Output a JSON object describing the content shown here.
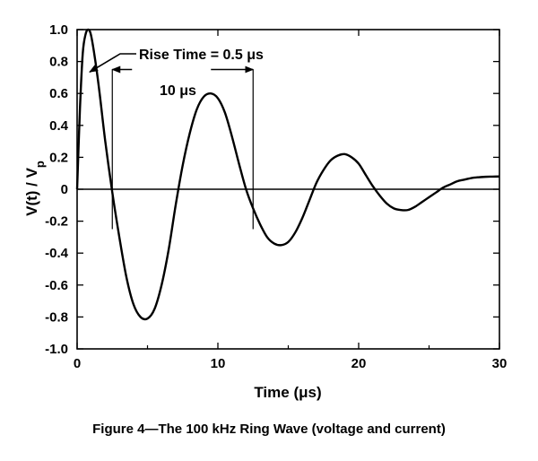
{
  "caption": "Figure 4—The 100 kHz Ring Wave (voltage and current)",
  "chart_data": {
    "type": "line",
    "title": "",
    "xlabel": "Time (μs)",
    "ylabel": "V(t) / V",
    "ylabel_sub": "p",
    "xlim": [
      0,
      30
    ],
    "ylim": [
      -1.0,
      1.0
    ],
    "xticks": [
      0,
      10,
      20,
      30
    ],
    "xtick_labels": [
      "0",
      "10",
      "20",
      "30"
    ],
    "yticks": [
      1.0,
      0.8,
      0.6,
      0.4,
      0.2,
      0,
      -0.2,
      -0.4,
      -0.6,
      -0.8,
      -1.0
    ],
    "ytick_labels": [
      "1.0",
      "0.8",
      "0.6",
      "0.4",
      "0.2",
      "0",
      "-0.2",
      "-0.4",
      "-0.6",
      "-0.8",
      "-1.0"
    ],
    "grid": false,
    "series": [
      {
        "name": "",
        "x": [
          0,
          0.2,
          0.4,
          0.6,
          0.8,
          1.0,
          1.3,
          1.6,
          2.0,
          2.5,
          3.0,
          3.5,
          4.0,
          4.5,
          5.0,
          5.5,
          6.0,
          6.5,
          7.0,
          7.5,
          8.0,
          8.5,
          9.0,
          9.5,
          10.0,
          10.5,
          11.0,
          11.5,
          12.0,
          12.5,
          13.0,
          13.5,
          14.0,
          14.5,
          15.0,
          15.5,
          16.0,
          16.5,
          17.0,
          17.5,
          18.0,
          18.5,
          19.0,
          19.5,
          20.0,
          20.5,
          21.0,
          21.5,
          22.0,
          22.5,
          23.0,
          23.5,
          24.0,
          24.5,
          25.0,
          25.5,
          26.0,
          26.5,
          27.0,
          27.5,
          28.0,
          28.5,
          29.0,
          29.5,
          30.0
        ],
        "y": [
          0,
          0.5,
          0.85,
          0.97,
          1.0,
          0.96,
          0.8,
          0.6,
          0.3,
          -0.02,
          -0.3,
          -0.55,
          -0.72,
          -0.8,
          -0.81,
          -0.75,
          -0.6,
          -0.38,
          -0.1,
          0.15,
          0.35,
          0.5,
          0.58,
          0.6,
          0.57,
          0.48,
          0.33,
          0.16,
          0.0,
          -0.12,
          -0.22,
          -0.3,
          -0.34,
          -0.35,
          -0.33,
          -0.27,
          -0.18,
          -0.07,
          0.04,
          0.12,
          0.18,
          0.21,
          0.22,
          0.2,
          0.16,
          0.09,
          0.02,
          -0.04,
          -0.09,
          -0.12,
          -0.13,
          -0.13,
          -0.11,
          -0.08,
          -0.05,
          -0.02,
          0.01,
          0.03,
          0.05,
          0.06,
          0.07,
          0.075,
          0.078,
          0.079,
          0.08
        ]
      }
    ],
    "annotations": {
      "rise_time_text": "Rise Time = 0.5 μs",
      "rise_time_point": [
        0.7,
        0.74
      ],
      "period_text": "10 μs",
      "period_start_x": 2.5,
      "period_end_x": 12.5,
      "period_arrow_y": 0.75,
      "period_marker_top_y": 0.75,
      "period_marker_bottom_y": -0.25
    }
  }
}
